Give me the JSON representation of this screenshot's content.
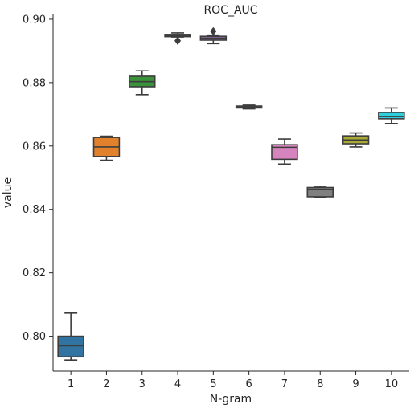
{
  "chart_data": {
    "type": "box",
    "title": "ROC_AUC",
    "xlabel": "N-gram",
    "ylabel": "value",
    "ylim": [
      0.789,
      0.9015
    ],
    "yticks": [
      "0.80",
      "0.82",
      "0.84",
      "0.86",
      "0.88",
      "0.90"
    ],
    "grid": false,
    "categories": [
      "1",
      "2",
      "3",
      "4",
      "5",
      "6",
      "7",
      "8",
      "9",
      "10"
    ],
    "boxes": [
      {
        "label": "1",
        "color": "#3274a1",
        "whislo": 0.7925,
        "q1": 0.7935,
        "med": 0.797,
        "q3": 0.8,
        "whishi": 0.8073,
        "fliers": []
      },
      {
        "label": "2",
        "color": "#e1812c",
        "whislo": 0.8555,
        "q1": 0.8567,
        "med": 0.8597,
        "q3": 0.8627,
        "whishi": 0.8631,
        "fliers": []
      },
      {
        "label": "3",
        "color": "#3a923a",
        "whislo": 0.8762,
        "q1": 0.8787,
        "med": 0.8803,
        "q3": 0.882,
        "whishi": 0.8837,
        "fliers": []
      },
      {
        "label": "4",
        "color": "#c03d3e",
        "whislo": 0.8944,
        "q1": 0.8945,
        "med": 0.8948,
        "q3": 0.8952,
        "whishi": 0.8957,
        "fliers": [
          0.8932
        ]
      },
      {
        "label": "5",
        "color": "#9372b2",
        "whislo": 0.8923,
        "q1": 0.8934,
        "med": 0.894,
        "q3": 0.8946,
        "whishi": 0.895,
        "fliers": [
          0.8962
        ]
      },
      {
        "label": "6",
        "color": "#845b53",
        "whislo": 0.8717,
        "q1": 0.872,
        "med": 0.8722,
        "q3": 0.8726,
        "whishi": 0.8729,
        "fliers": []
      },
      {
        "label": "7",
        "color": "#d684bd",
        "whislo": 0.8543,
        "q1": 0.8558,
        "med": 0.8596,
        "q3": 0.8604,
        "whishi": 0.8622,
        "fliers": []
      },
      {
        "label": "8",
        "color": "#7f7f7f",
        "whislo": 0.8438,
        "q1": 0.844,
        "med": 0.8463,
        "q3": 0.8469,
        "whishi": 0.8473,
        "fliers": []
      },
      {
        "label": "9",
        "color": "#a9aa35",
        "whislo": 0.8597,
        "q1": 0.8607,
        "med": 0.8619,
        "q3": 0.8632,
        "whishi": 0.8641,
        "fliers": []
      },
      {
        "label": "10",
        "color": "#2ed0de",
        "whislo": 0.8671,
        "q1": 0.8686,
        "med": 0.8693,
        "q3": 0.8706,
        "whishi": 0.872,
        "fliers": []
      }
    ]
  }
}
